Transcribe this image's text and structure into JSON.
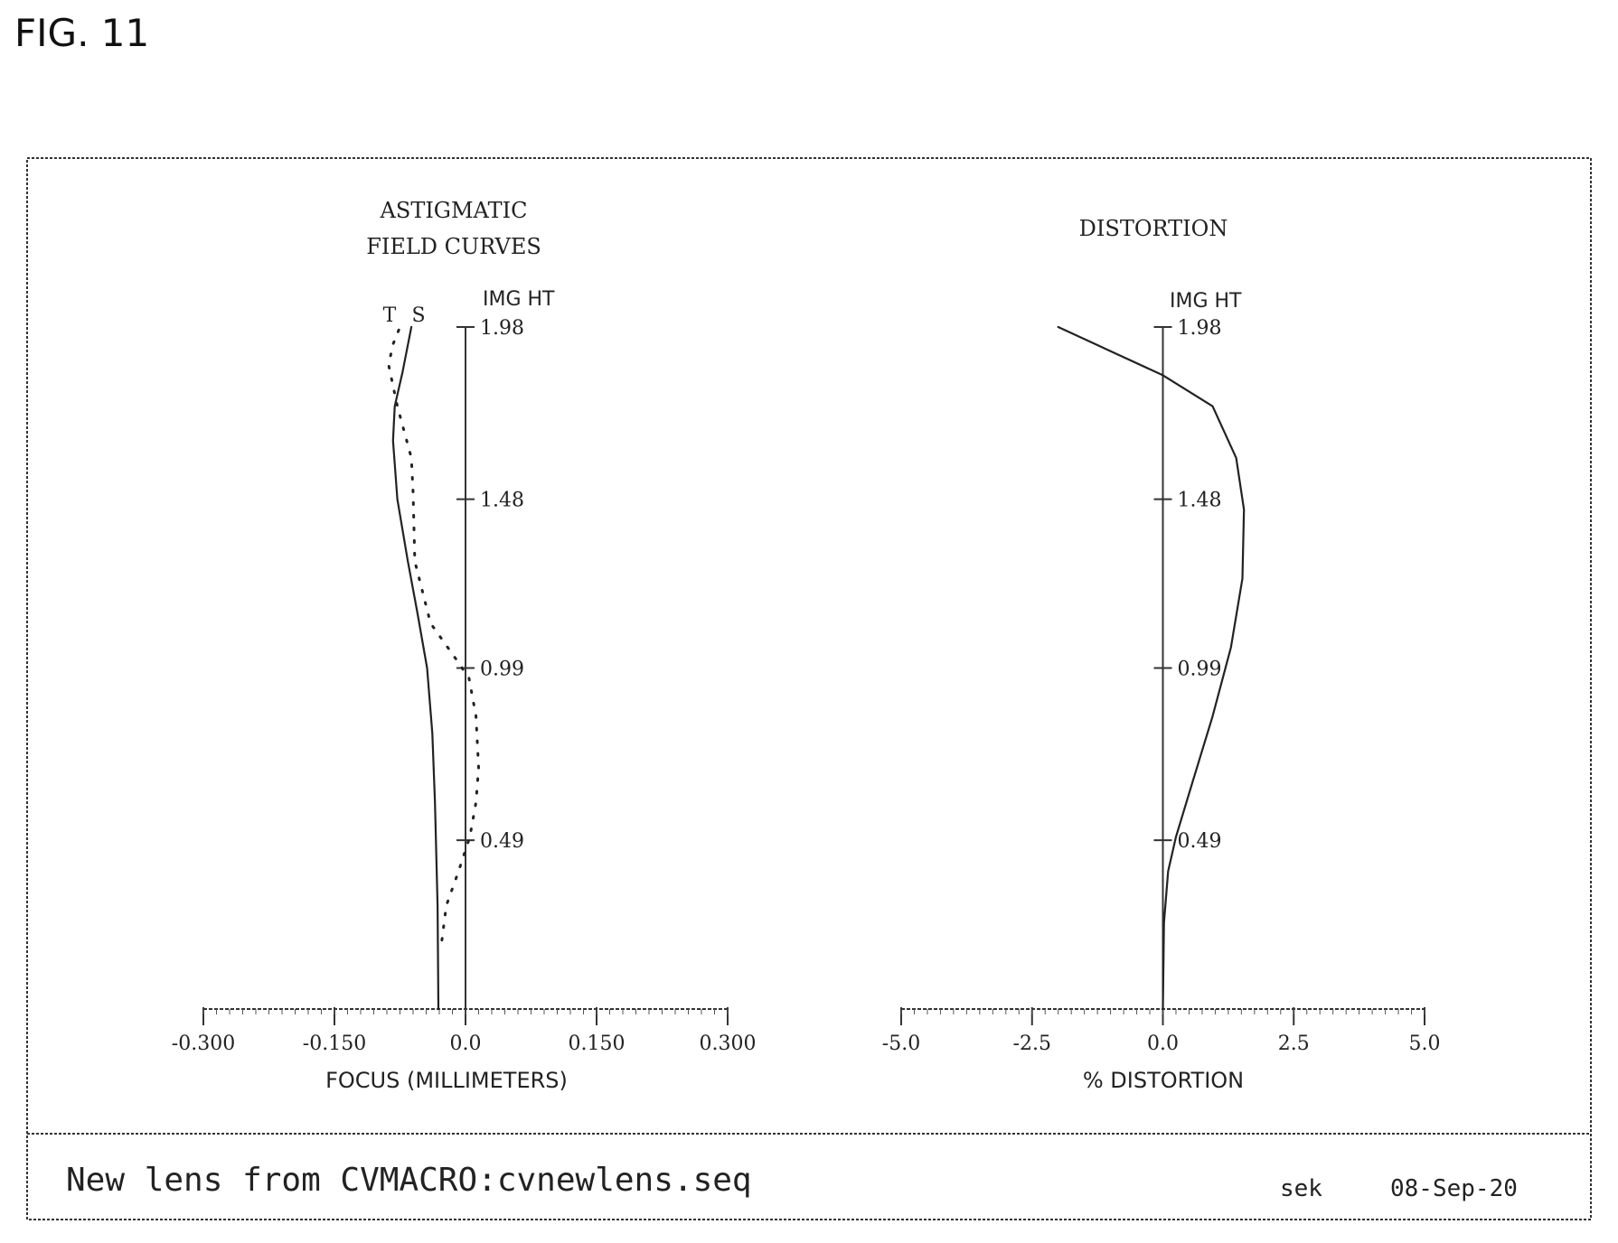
{
  "figure_label": "FIG. 11",
  "footer": {
    "title": "New lens from CVMACRO:cvnewlens.seq",
    "author": "sek",
    "date": "08-Sep-20"
  },
  "chart_data": [
    {
      "type": "line",
      "title": "ASTIGMATIC",
      "subtitle": "FIELD CURVES",
      "xlabel": "FOCUS (MILLIMETERS)",
      "ylabel": "IMG HT",
      "xlim": [
        -0.3,
        0.3
      ],
      "ylim": [
        0,
        1.98
      ],
      "x_ticks": [
        "-0.300",
        "-0.150",
        "0.0",
        "0.150",
        "0.300"
      ],
      "y_ticks": [
        "0.49",
        "0.99",
        "1.48",
        "1.98"
      ],
      "y_tick_values": [
        0.49,
        0.99,
        1.48,
        1.98
      ],
      "curve_labels": [
        "T",
        "S"
      ],
      "series": [
        {
          "name": "T",
          "style": "solid",
          "points": [
            [
              -0.031,
              0.0
            ],
            [
              -0.032,
              0.3
            ],
            [
              -0.035,
              0.6
            ],
            [
              -0.038,
              0.8
            ],
            [
              -0.044,
              0.99
            ],
            [
              -0.055,
              1.15
            ],
            [
              -0.066,
              1.3
            ],
            [
              -0.078,
              1.48
            ],
            [
              -0.083,
              1.65
            ],
            [
              -0.081,
              1.75
            ],
            [
              -0.072,
              1.85
            ],
            [
              -0.062,
              1.98
            ]
          ]
        },
        {
          "name": "S",
          "style": "dotted",
          "points": [
            [
              -0.027,
              0.2
            ],
            [
              -0.022,
              0.3
            ],
            [
              -0.008,
              0.4
            ],
            [
              0.005,
              0.5
            ],
            [
              0.012,
              0.6
            ],
            [
              0.015,
              0.7
            ],
            [
              0.012,
              0.85
            ],
            [
              0.004,
              0.96
            ],
            [
              -0.012,
              1.02
            ],
            [
              -0.04,
              1.12
            ],
            [
              -0.058,
              1.3
            ],
            [
              -0.06,
              1.5
            ],
            [
              -0.062,
              1.6
            ],
            [
              -0.078,
              1.75
            ],
            [
              -0.088,
              1.87
            ],
            [
              -0.083,
              1.93
            ],
            [
              -0.075,
              1.98
            ]
          ]
        }
      ]
    },
    {
      "type": "line",
      "title": "DISTORTION",
      "xlabel": "% DISTORTION",
      "ylabel": "IMG HT",
      "xlim": [
        -5.0,
        5.0
      ],
      "ylim": [
        0,
        1.98
      ],
      "x_ticks": [
        "-5.0",
        "-2.5",
        "0.0",
        "2.5",
        "5.0"
      ],
      "y_ticks": [
        "0.49",
        "0.99",
        "1.48",
        "1.98"
      ],
      "y_tick_values": [
        0.49,
        0.99,
        1.48,
        1.98
      ],
      "series": [
        {
          "name": "",
          "style": "solid",
          "points": [
            [
              0.0,
              0.0
            ],
            [
              0.02,
              0.25
            ],
            [
              0.1,
              0.4
            ],
            [
              0.25,
              0.5
            ],
            [
              0.55,
              0.65
            ],
            [
              0.95,
              0.85
            ],
            [
              1.3,
              1.05
            ],
            [
              1.52,
              1.25
            ],
            [
              1.55,
              1.45
            ],
            [
              1.4,
              1.6
            ],
            [
              0.95,
              1.75
            ],
            [
              0.0,
              1.84
            ],
            [
              -1.0,
              1.91
            ],
            [
              -2.0,
              1.98
            ]
          ]
        }
      ]
    }
  ]
}
